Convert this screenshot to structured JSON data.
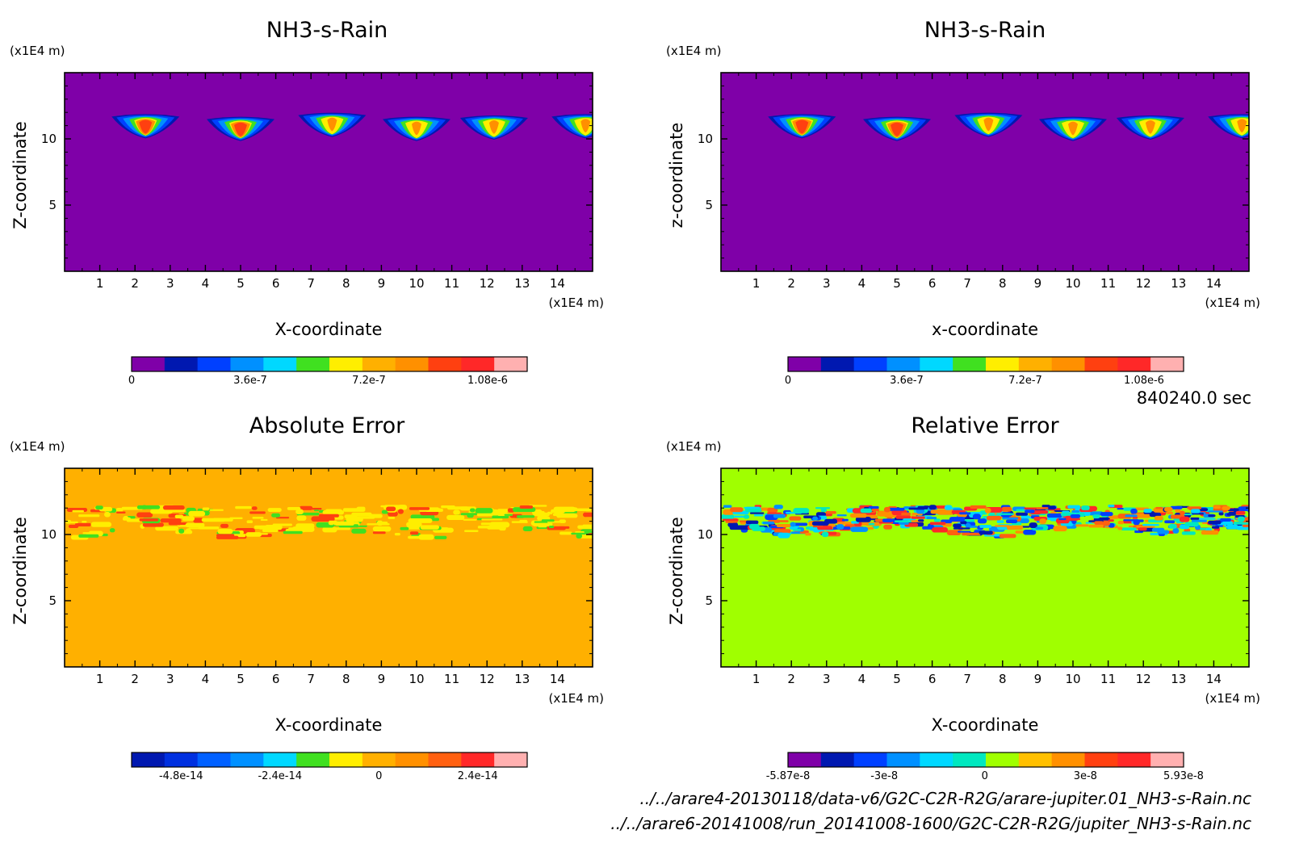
{
  "figure": {
    "time_label": "840240.0 sec",
    "files": [
      "../../arare4-20130118/data-v6/G2C-C2R-R2G/arare-jupiter.01_NH3-s-Rain.nc",
      "../../arare6-20141008/run_20141008-1600/G2C-C2R-R2G/jupiter_NH3-s-Rain.nc"
    ]
  },
  "chart_data": [
    {
      "type": "heatmap",
      "title": "NH3-s-Rain",
      "xlabel": "X-coordinate",
      "ylabel": "Z-coordinate",
      "x_unit": "(x1E4 m)",
      "y_unit": "(x1E4 m)",
      "xlim": [
        0,
        15
      ],
      "ylim": [
        0,
        15
      ],
      "xticks": [
        1,
        2,
        3,
        4,
        5,
        6,
        7,
        8,
        9,
        10,
        11,
        12,
        13,
        14
      ],
      "yticks": [
        5,
        10
      ],
      "background_color": "#7f00a8",
      "blobs": [
        {
          "x": 2.3,
          "z": 11.2,
          "peak": 1.1e-06
        },
        {
          "x": 5.0,
          "z": 11.0,
          "peak": 1.1e-06
        },
        {
          "x": 7.6,
          "z": 11.3,
          "peak": 7.2e-07
        },
        {
          "x": 10.0,
          "z": 11.0,
          "peak": 7.2e-07
        },
        {
          "x": 12.2,
          "z": 11.1,
          "peak": 7.2e-07
        },
        {
          "x": 14.8,
          "z": 11.2,
          "peak": 7.2e-07
        }
      ],
      "colorbar": {
        "colors": [
          "#7f00a8",
          "#0018b0",
          "#0040ff",
          "#0090ff",
          "#00d8ff",
          "#40e020",
          "#ffee00",
          "#ffb000",
          "#ff9000",
          "#ff4010",
          "#ff2828",
          "#ffb0b0"
        ],
        "tick_labels": [
          "0",
          "3.6e-7",
          "7.2e-7",
          "1.08e-6"
        ],
        "tick_values": [
          0,
          3.6e-07,
          7.2e-07,
          1.08e-06
        ],
        "range": [
          0,
          1.2e-06
        ]
      }
    },
    {
      "type": "heatmap",
      "title": "NH3-s-Rain",
      "xlabel": "x-coordinate",
      "ylabel": "z-coordinate",
      "x_unit": "(x1E4 m)",
      "y_unit": "(x1E4 m)",
      "xlim": [
        0,
        15
      ],
      "ylim": [
        0,
        15
      ],
      "xticks": [
        1,
        2,
        3,
        4,
        5,
        6,
        7,
        8,
        9,
        10,
        11,
        12,
        13,
        14
      ],
      "yticks": [
        5,
        10
      ],
      "background_color": "#7f00a8",
      "blobs": [
        {
          "x": 2.3,
          "z": 11.2,
          "peak": 1.1e-06
        },
        {
          "x": 5.0,
          "z": 11.0,
          "peak": 1.1e-06
        },
        {
          "x": 7.6,
          "z": 11.3,
          "peak": 7.2e-07
        },
        {
          "x": 10.0,
          "z": 11.0,
          "peak": 7.2e-07
        },
        {
          "x": 12.2,
          "z": 11.1,
          "peak": 7.2e-07
        },
        {
          "x": 14.8,
          "z": 11.2,
          "peak": 7.2e-07
        }
      ],
      "colorbar": {
        "colors": [
          "#7f00a8",
          "#0018b0",
          "#0040ff",
          "#0090ff",
          "#00d8ff",
          "#40e020",
          "#ffee00",
          "#ffb000",
          "#ff9000",
          "#ff4010",
          "#ff2828",
          "#ffb0b0"
        ],
        "tick_labels": [
          "0",
          "3.6e-7",
          "7.2e-7",
          "1.08e-6"
        ],
        "tick_values": [
          0,
          3.6e-07,
          7.2e-07,
          1.08e-06
        ],
        "range": [
          0,
          1.2e-06
        ]
      }
    },
    {
      "type": "heatmap",
      "title": "Absolute Error",
      "xlabel": "X-coordinate",
      "ylabel": "Z-coordinate",
      "x_unit": "(x1E4 m)",
      "y_unit": "(x1E4 m)",
      "xlim": [
        0,
        15
      ],
      "ylim": [
        0,
        15
      ],
      "xticks": [
        1,
        2,
        3,
        4,
        5,
        6,
        7,
        8,
        9,
        10,
        11,
        12,
        13,
        14
      ],
      "yticks": [
        5,
        10
      ],
      "background_color": "#ffb000",
      "noise_band_z": [
        10.0,
        12.5
      ],
      "noise_colors": [
        "#ffee00",
        "#ffee00",
        "#ffee00",
        "#40e020",
        "#ff4010"
      ],
      "colorbar": {
        "colors": [
          "#0018b0",
          "#0030e0",
          "#0060ff",
          "#0090ff",
          "#00d8ff",
          "#40e020",
          "#ffee00",
          "#ffb000",
          "#ff9000",
          "#ff6010",
          "#ff2828",
          "#ffb0b0"
        ],
        "tick_labels": [
          "-4.8e-14",
          "-2.4e-14",
          "0",
          "2.4e-14"
        ],
        "tick_values": [
          -4.8e-14,
          -2.4e-14,
          0,
          2.4e-14
        ],
        "range": [
          -6e-14,
          3.6e-14
        ]
      }
    },
    {
      "type": "heatmap",
      "title": "Relative Error",
      "xlabel": "X-coordinate",
      "ylabel": "Z-coordinate",
      "x_unit": "(x1E4 m)",
      "y_unit": "(x1E4 m)",
      "xlim": [
        0,
        15
      ],
      "ylim": [
        0,
        15
      ],
      "xticks": [
        1,
        2,
        3,
        4,
        5,
        6,
        7,
        8,
        9,
        10,
        11,
        12,
        13,
        14
      ],
      "yticks": [
        5,
        10
      ],
      "background_color": "#a0ff00",
      "noise_band_z": [
        10.0,
        12.5
      ],
      "noise_colors": [
        "#0040ff",
        "#0090ff",
        "#00d8ff",
        "#00e8c0",
        "#ff9000",
        "#ff2828",
        "#ff6010",
        "#0018b0"
      ],
      "colorbar": {
        "colors": [
          "#7f00a8",
          "#0018b0",
          "#0040ff",
          "#0090ff",
          "#00d8ff",
          "#00e8c0",
          "#a0ff00",
          "#ffc000",
          "#ff9000",
          "#ff4010",
          "#ff2828",
          "#ffb0b0"
        ],
        "tick_labels": [
          "-5.87e-8",
          "-3e-8",
          "0",
          "3e-8",
          "5.93e-8"
        ],
        "tick_values": [
          -5.87e-08,
          -3e-08,
          0,
          3e-08,
          5.93e-08
        ],
        "range": [
          -5.87e-08,
          5.93e-08
        ]
      }
    }
  ]
}
